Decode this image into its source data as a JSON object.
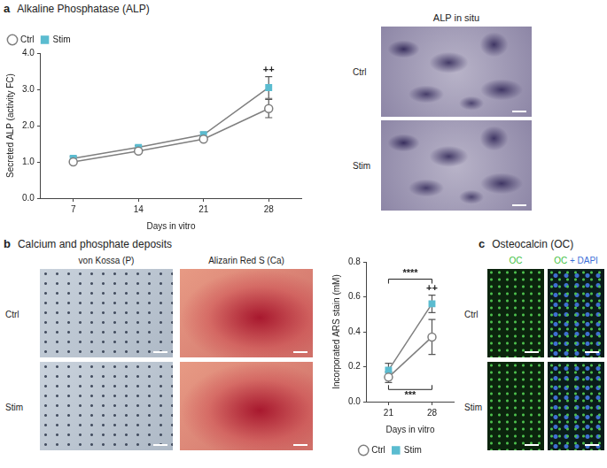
{
  "chart_data": [
    {
      "type": "line",
      "x_label": "Days in vitro",
      "y_label": "Secreted ALP (activity FC)",
      "categories": [
        "7",
        "14",
        "21",
        "28"
      ],
      "series": [
        {
          "name": "Ctrl",
          "color": "#7f7f7f",
          "marker": "circle_open",
          "values": [
            1.0,
            1.3,
            1.63,
            2.47
          ],
          "errors": [
            0.05,
            0.05,
            0.05,
            0.25
          ]
        },
        {
          "name": "Stim",
          "color": "#5bbcd0",
          "marker": "square",
          "values": [
            1.1,
            1.4,
            1.75,
            3.05
          ],
          "errors": [
            0.05,
            0.05,
            0.07,
            0.3
          ]
        }
      ],
      "ylim": [
        0,
        4
      ],
      "yticks": [
        {
          "value": 0,
          "label": "0.0"
        },
        {
          "value": 1,
          "label": "1.0"
        },
        {
          "value": 2,
          "label": "2.0"
        },
        {
          "value": 3,
          "label": "3.0"
        },
        {
          "value": 4,
          "label": "4.0"
        }
      ],
      "grid": false,
      "legend": "top-left",
      "annotations": [
        {
          "text": "++",
          "category": "28",
          "series": "Stim"
        }
      ]
    },
    {
      "type": "line",
      "x_label": "Days in vitro",
      "y_label": "Incorporated ARS stain (mM)",
      "categories": [
        "21",
        "28"
      ],
      "series": [
        {
          "name": "Ctrl",
          "color": "#7f7f7f",
          "marker": "circle_open",
          "values": [
            0.14,
            0.37
          ],
          "errors": [
            0.03,
            0.1
          ]
        },
        {
          "name": "Stim",
          "color": "#5bbcd0",
          "marker": "square",
          "values": [
            0.18,
            0.56
          ],
          "errors": [
            0.04,
            0.05
          ]
        }
      ],
      "ylim": [
        0,
        0.8
      ],
      "yticks": [
        {
          "value": 0,
          "label": "0.0"
        },
        {
          "value": 0.2,
          "label": "0.2"
        },
        {
          "value": 0.4,
          "label": "0.4"
        },
        {
          "value": 0.6,
          "label": "0.6"
        },
        {
          "value": 0.8,
          "label": "0.8"
        }
      ],
      "grid": false,
      "legend": "bottom",
      "annotations": [
        {
          "text": "++",
          "category": "28",
          "series": "Stim"
        },
        {
          "text": "****",
          "between": [
            "21",
            "28"
          ],
          "series": "Stim",
          "side": "above"
        },
        {
          "text": "***",
          "between": [
            "21",
            "28"
          ],
          "series": "Ctrl",
          "side": "below"
        }
      ]
    }
  ],
  "figure": {
    "a": {
      "letter": "a",
      "title": "Alkaline Phosphatase (ALP)",
      "image_columns": [
        "ALP in situ"
      ],
      "rows": [
        "Ctrl",
        "Stim"
      ]
    },
    "b": {
      "letter": "b",
      "title": "Calcium and phosphate deposits",
      "image_columns": [
        "von Kossa (P)",
        "Alizarin Red S (Ca)"
      ],
      "rows": [
        "Ctrl",
        "Stim"
      ]
    },
    "c": {
      "letter": "c",
      "title": "Osteocalcin (OC)",
      "image_columns": [
        "OC",
        "OC + DAPI"
      ],
      "rows": [
        "Ctrl",
        "Stim"
      ]
    }
  }
}
